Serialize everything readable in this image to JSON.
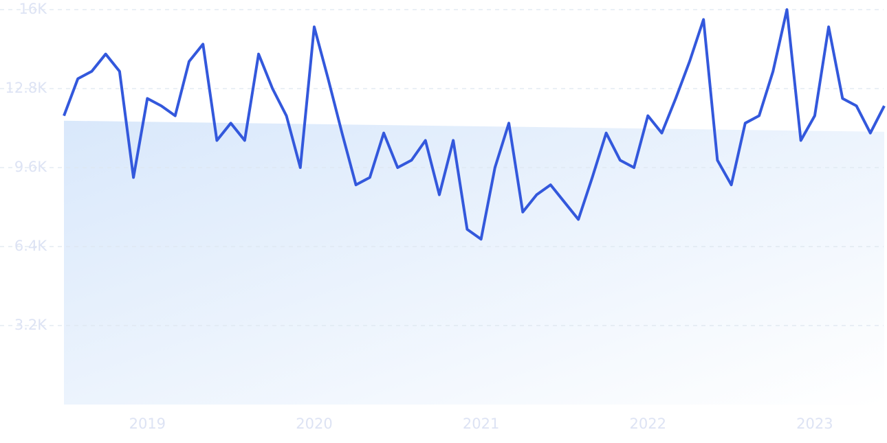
{
  "chart_data": {
    "type": "line",
    "categories": [
      null,
      null,
      null,
      null,
      null,
      null,
      "2019",
      null,
      null,
      null,
      null,
      null,
      null,
      null,
      null,
      null,
      null,
      null,
      "2020",
      null,
      null,
      null,
      null,
      null,
      null,
      null,
      null,
      null,
      null,
      null,
      "2021",
      null,
      null,
      null,
      null,
      null,
      null,
      null,
      null,
      null,
      null,
      null,
      "2022",
      null,
      null,
      null,
      null,
      null,
      null,
      null,
      null,
      null,
      null,
      null,
      "2023",
      null,
      null,
      null,
      null,
      null
    ],
    "series": [
      {
        "color": "#3358dc",
        "values": [
          11700,
          13200,
          13500,
          14200,
          13500,
          9200,
          12400,
          12100,
          11700,
          13900,
          14600,
          10700,
          11400,
          10700,
          14200,
          12800,
          11700,
          9600,
          15300,
          13200,
          11000,
          8900,
          9200,
          11000,
          9600,
          9900,
          10700,
          8500,
          10700,
          7100,
          6700,
          9600,
          11400,
          7800,
          8500,
          8900,
          8200,
          7500,
          9200,
          11000,
          9900,
          9600,
          11700,
          11000,
          12400,
          13900,
          15600,
          9900,
          8900,
          11400,
          11700,
          13500,
          16000,
          10700,
          11700,
          15300,
          12400,
          12100,
          11000,
          12100
        ]
      }
    ],
    "trend": [
      11500,
      11050
    ],
    "ylim": [
      0,
      16000
    ],
    "yticks": [
      {
        "value": 3200,
        "label": "3.2K"
      },
      {
        "value": 6400,
        "label": "6.4K"
      },
      {
        "value": 9600,
        "label": "9.6K"
      },
      {
        "value": 12800,
        "label": "12.8K"
      },
      {
        "value": 16000,
        "label": "16K"
      }
    ],
    "grid": true
  }
}
